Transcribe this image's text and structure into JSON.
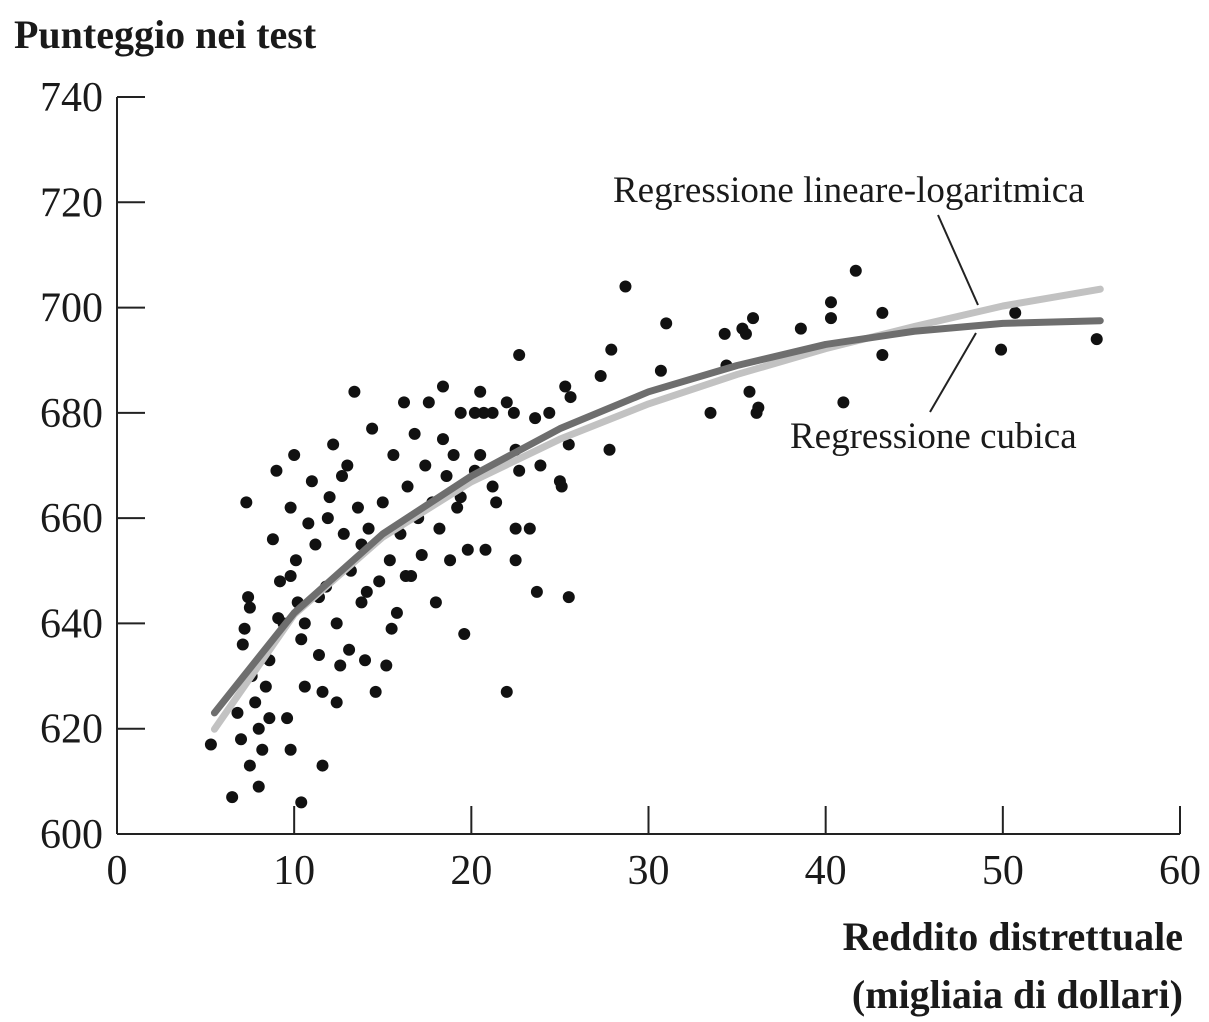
{
  "chart_data": {
    "type": "scatter",
    "title": "Punteggio nei test",
    "xlabel": [
      "Reddito distrettuale",
      "(migliaia di dollari)"
    ],
    "xlim": [
      0,
      60
    ],
    "xticks": [
      0,
      10,
      20,
      30,
      40,
      50,
      60
    ],
    "ylim": [
      600,
      740
    ],
    "yticks": [
      600,
      620,
      640,
      660,
      680,
      700,
      720,
      740
    ],
    "color": "#111111",
    "x": [
      5.3,
      6.5,
      7,
      7.5,
      8,
      7.3,
      9.8,
      10.4,
      11.6,
      19.6,
      22,
      23.7,
      25.5,
      28.7,
      31,
      30.7,
      27.3,
      27.9,
      27.8,
      22.7,
      25.3,
      25.6,
      25,
      25.1,
      25.5,
      24.4,
      23.6,
      22.5,
      22.7,
      22.5,
      22.5,
      23.3,
      23.9,
      22,
      22.4,
      21.2,
      20.5,
      20.7,
      20.2,
      19.4,
      18.4,
      34.3,
      35.3,
      35.5,
      35.9,
      34.4,
      35.7,
      36.2,
      36.1,
      33.5,
      38.6,
      40.3,
      40.3,
      41.7,
      41,
      43.2,
      43.2,
      49.9,
      50.7,
      55.3,
      6.8,
      7.1,
      7.2,
      7.4,
      7.5,
      7.6,
      7.8,
      8,
      8.2,
      8.4,
      8.6,
      8.8,
      9,
      9.2,
      9.4,
      9.6,
      9.8,
      10,
      10.1,
      10.2,
      10.4,
      10.6,
      10.8,
      11,
      11.2,
      11.4,
      11.6,
      11.8,
      12,
      12.2,
      12.4,
      12.6,
      12.8,
      13,
      13.2,
      13.4,
      13.6,
      13.8,
      14,
      14.2,
      14.4,
      14.6,
      14.8,
      15,
      15.2,
      15.4,
      15.6,
      15.8,
      16,
      16.2,
      16.4,
      16.6,
      16.8,
      17,
      17.2,
      17.4,
      17.6,
      17.8,
      18,
      18.2,
      18.4,
      18.6,
      18.8,
      19,
      19.2,
      19.4,
      19.8,
      20.2,
      20.8,
      21.2,
      21.4,
      20.5,
      12.4,
      11.4,
      10.6,
      9.1,
      13.1,
      14.1,
      12.7,
      16.3,
      8.6,
      9.8,
      11.9,
      13.8,
      15.5
    ],
    "values": [
      617,
      607,
      618,
      613,
      609,
      663,
      616,
      606,
      613,
      638,
      627,
      646,
      645,
      704,
      697,
      688,
      687,
      692,
      673,
      691,
      685,
      683,
      667,
      666,
      674,
      680,
      679,
      673,
      669,
      658,
      652,
      658,
      670,
      682,
      680,
      680,
      684,
      680,
      680,
      680,
      685,
      695,
      696,
      695,
      698,
      689,
      684,
      681,
      680,
      680,
      696,
      701,
      698,
      707,
      682,
      699,
      691,
      692,
      699,
      694,
      623,
      636,
      639,
      645,
      643,
      630,
      625,
      620,
      616,
      628,
      633,
      656,
      669,
      648,
      640,
      622,
      662,
      672,
      652,
      644,
      637,
      628,
      659,
      667,
      655,
      634,
      627,
      647,
      664,
      674,
      640,
      632,
      657,
      670,
      650,
      684,
      662,
      644,
      633,
      658,
      677,
      627,
      648,
      663,
      632,
      652,
      672,
      642,
      657,
      682,
      666,
      649,
      676,
      660,
      653,
      670,
      682,
      663,
      644,
      658,
      675,
      668,
      652,
      672,
      662,
      664,
      654,
      669,
      654,
      666,
      663,
      672,
      625,
      645,
      640,
      641,
      635,
      646,
      668,
      649,
      622,
      649,
      660,
      655,
      639
    ],
    "lines": [
      {
        "name": "Regressione lineare-logaritmica",
        "color": "#c2c2c2",
        "x": [
          5.5,
          10,
          15,
          20,
          25,
          30,
          35,
          40,
          45,
          50,
          55.5
        ],
        "values": [
          619.9,
          641.7,
          656.4,
          666.9,
          675,
          681.7,
          687.3,
          692.2,
          696.4,
          700.3,
          703.5
        ]
      },
      {
        "name": "Regressione cubica",
        "color": "#6e6e6e",
        "x": [
          5.5,
          10,
          15,
          20,
          25,
          30,
          35,
          40,
          45,
          50,
          55.5
        ],
        "values": [
          623,
          642,
          657,
          668,
          677,
          684,
          689,
          693,
          695.5,
          697,
          697.5
        ]
      }
    ]
  }
}
